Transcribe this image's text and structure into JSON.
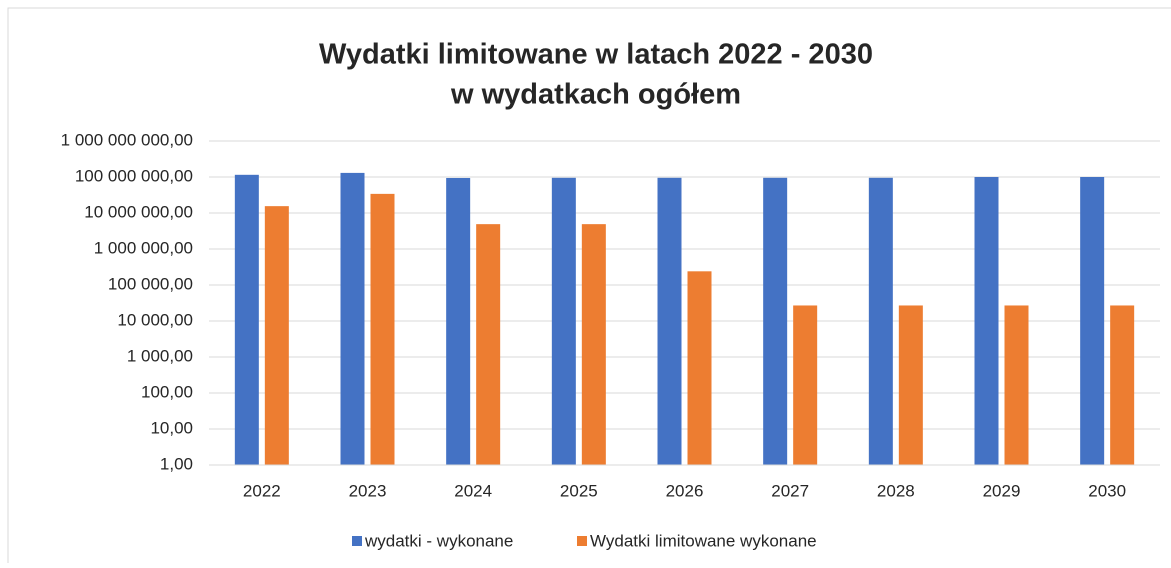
{
  "chart_data": {
    "type": "bar",
    "title": [
      "Wydatki limitowane w latach 2022 - 2030",
      "w wydatkach ogółem"
    ],
    "categories": [
      "2022",
      "2023",
      "2024",
      "2025",
      "2026",
      "2027",
      "2028",
      "2029",
      "2030"
    ],
    "series": [
      {
        "name": "wydatki - wykonane",
        "color": "#4472c4",
        "values": [
          115000000,
          130000000,
          94000000,
          95000000,
          95000000,
          95000000,
          95000000,
          100000000,
          100000000
        ]
      },
      {
        "name": "Wydatki limitowane wykonane",
        "color": "#ed7d31",
        "values": [
          15500000,
          34000000,
          4900000,
          4900000,
          240000,
          27000,
          27000,
          27000,
          27000
        ]
      }
    ],
    "ylim": [
      1,
      1000000000
    ],
    "log_scale": true,
    "yticks": [
      {
        "value": 1,
        "label": "1,00"
      },
      {
        "value": 10,
        "label": "10,00"
      },
      {
        "value": 100,
        "label": "100,00"
      },
      {
        "value": 1000,
        "label": "1 000,00"
      },
      {
        "value": 10000,
        "label": "10 000,00"
      },
      {
        "value": 100000,
        "label": "100 000,00"
      },
      {
        "value": 1000000,
        "label": "1 000 000,00"
      },
      {
        "value": 10000000,
        "label": "10 000 000,00"
      },
      {
        "value": 100000000,
        "label": "100 000 000,00"
      },
      {
        "value": 1000000000,
        "label": "1 000 000 000,00"
      }
    ],
    "grid": true,
    "legend": "bottom"
  }
}
